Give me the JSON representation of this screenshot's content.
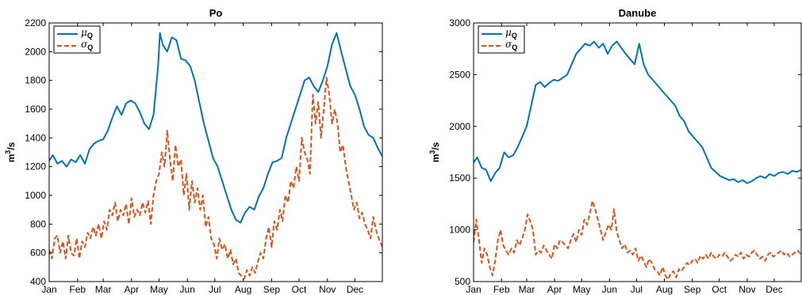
{
  "colors": {
    "mean": "#0072BD",
    "std": "#D95319",
    "axis": "#000000",
    "background": "#ffffff"
  },
  "chart_data": [
    {
      "type": "line",
      "title": "Po",
      "xlabel": "",
      "ylabel": "m3/s",
      "ylabel_base": "m",
      "ylabel_exp": "3",
      "ylabel_rest": "/s",
      "xlim": [
        1,
        365
      ],
      "ylim": [
        400,
        2200
      ],
      "yticks": [
        400,
        600,
        800,
        1000,
        1200,
        1400,
        1600,
        1800,
        2000,
        2200
      ],
      "month_labels": [
        "Jan",
        "Feb",
        "Mar",
        "Apr",
        "May",
        "Jun",
        "Jul",
        "Aug",
        "Sep",
        "Oct",
        "Nov",
        "Dec"
      ],
      "month_days": [
        1,
        32,
        60,
        91,
        121,
        152,
        182,
        213,
        244,
        274,
        305,
        335
      ],
      "legend": "top-left",
      "grid": false,
      "series": [
        {
          "name": "μQ",
          "name_symbol": "μ",
          "name_sub": "Q",
          "style": "solid",
          "color": "#0072BD",
          "x": [
            1,
            5,
            10,
            15,
            20,
            25,
            30,
            35,
            40,
            45,
            50,
            55,
            60,
            65,
            70,
            75,
            80,
            85,
            90,
            95,
            100,
            105,
            110,
            115,
            120,
            122,
            125,
            130,
            135,
            140,
            145,
            150,
            155,
            160,
            165,
            170,
            175,
            180,
            185,
            190,
            195,
            200,
            205,
            210,
            215,
            220,
            225,
            230,
            235,
            240,
            245,
            250,
            255,
            260,
            265,
            270,
            275,
            280,
            285,
            290,
            295,
            300,
            305,
            310,
            315,
            320,
            325,
            330,
            335,
            340,
            345,
            350,
            355,
            360,
            365
          ],
          "y": [
            1240,
            1280,
            1220,
            1240,
            1200,
            1250,
            1230,
            1280,
            1220,
            1320,
            1360,
            1380,
            1390,
            1450,
            1540,
            1620,
            1560,
            1640,
            1660,
            1640,
            1580,
            1500,
            1460,
            1560,
            1900,
            2130,
            2050,
            2000,
            2100,
            2080,
            1950,
            1940,
            1900,
            1800,
            1650,
            1500,
            1380,
            1260,
            1200,
            1100,
            1000,
            900,
            830,
            810,
            880,
            920,
            900,
            990,
            1050,
            1150,
            1230,
            1240,
            1260,
            1400,
            1500,
            1600,
            1700,
            1800,
            1820,
            1760,
            1720,
            1800,
            1900,
            2050,
            2130,
            2000,
            1880,
            1760,
            1700,
            1600,
            1480,
            1420,
            1400,
            1330,
            1270
          ]
        },
        {
          "name": "σQ",
          "name_symbol": "σ",
          "name_sub": "Q",
          "style": "dashed",
          "color": "#D95319",
          "x": [
            1,
            4,
            7,
            10,
            13,
            16,
            19,
            22,
            25,
            28,
            31,
            34,
            37,
            40,
            43,
            46,
            49,
            52,
            55,
            58,
            61,
            64,
            67,
            70,
            73,
            76,
            79,
            82,
            85,
            88,
            91,
            94,
            97,
            100,
            103,
            106,
            109,
            112,
            115,
            118,
            121,
            124,
            127,
            130,
            133,
            136,
            139,
            142,
            145,
            148,
            151,
            154,
            157,
            160,
            163,
            166,
            169,
            172,
            175,
            178,
            181,
            184,
            187,
            190,
            193,
            196,
            199,
            202,
            205,
            208,
            211,
            214,
            217,
            220,
            223,
            226,
            229,
            232,
            235,
            238,
            241,
            244,
            247,
            250,
            253,
            256,
            259,
            262,
            265,
            268,
            271,
            274,
            277,
            280,
            283,
            286,
            289,
            292,
            295,
            298,
            301,
            304,
            307,
            310,
            313,
            316,
            319,
            322,
            325,
            328,
            331,
            334,
            337,
            340,
            343,
            346,
            349,
            352,
            355,
            358,
            361,
            365
          ],
          "y": [
            620,
            560,
            700,
            720,
            600,
            680,
            560,
            720,
            600,
            580,
            700,
            560,
            680,
            640,
            740,
            700,
            780,
            720,
            800,
            700,
            820,
            760,
            900,
            860,
            950,
            820,
            900,
            860,
            940,
            800,
            980,
            850,
            900,
            860,
            950,
            880,
            960,
            800,
            1000,
            1100,
            1150,
            1300,
            1200,
            1450,
            1250,
            1100,
            1350,
            1200,
            1250,
            1000,
            1150,
            900,
            1100,
            950,
            1050,
            900,
            1000,
            780,
            850,
            700,
            660,
            560,
            700,
            620,
            660,
            560,
            620,
            520,
            560,
            460,
            440,
            420,
            480,
            440,
            500,
            460,
            540,
            600,
            560,
            700,
            780,
            640,
            820,
            760,
            900,
            820,
            1000,
            950,
            1100,
            1050,
            1200,
            1100,
            1400,
            1300,
            1250,
            1150,
            1700,
            1500,
            1650,
            1400,
            1600,
            1820,
            1700,
            1500,
            1600,
            1500,
            1300,
            1350,
            1200,
            1100,
            1000,
            900,
            950,
            840,
            880,
            800,
            760,
            700,
            850,
            760,
            700,
            640
          ]
        }
      ]
    },
    {
      "type": "line",
      "title": "Danube",
      "xlabel": "",
      "ylabel": "m3/s",
      "ylabel_base": "m",
      "ylabel_exp": "3",
      "ylabel_rest": "/s",
      "xlim": [
        1,
        365
      ],
      "ylim": [
        500,
        3000
      ],
      "yticks": [
        500,
        1000,
        1500,
        2000,
        2500,
        3000
      ],
      "month_labels": [
        "Jan",
        "Feb",
        "Mar",
        "Apr",
        "May",
        "Jun",
        "Jul",
        "Aug",
        "Sep",
        "Oct",
        "Nov",
        "Dec"
      ],
      "month_days": [
        1,
        32,
        60,
        91,
        121,
        152,
        182,
        213,
        244,
        274,
        305,
        335
      ],
      "legend": "top-left",
      "grid": false,
      "series": [
        {
          "name": "μQ",
          "name_symbol": "μ",
          "name_sub": "Q",
          "style": "solid",
          "color": "#0072BD",
          "x": [
            1,
            5,
            10,
            15,
            20,
            25,
            30,
            35,
            40,
            45,
            50,
            55,
            60,
            65,
            70,
            75,
            80,
            85,
            90,
            95,
            100,
            105,
            110,
            115,
            120,
            125,
            130,
            135,
            140,
            145,
            150,
            155,
            160,
            165,
            170,
            175,
            180,
            185,
            190,
            195,
            200,
            205,
            210,
            215,
            220,
            225,
            230,
            235,
            240,
            245,
            250,
            255,
            260,
            265,
            270,
            275,
            280,
            285,
            290,
            295,
            300,
            305,
            310,
            315,
            320,
            325,
            330,
            335,
            340,
            345,
            350,
            355,
            360,
            365
          ],
          "y": [
            1650,
            1700,
            1600,
            1580,
            1470,
            1550,
            1600,
            1750,
            1700,
            1720,
            1800,
            1900,
            2000,
            2200,
            2400,
            2430,
            2380,
            2420,
            2450,
            2440,
            2470,
            2500,
            2600,
            2700,
            2750,
            2800,
            2780,
            2820,
            2760,
            2800,
            2700,
            2780,
            2820,
            2760,
            2700,
            2650,
            2600,
            2800,
            2600,
            2500,
            2450,
            2400,
            2350,
            2300,
            2250,
            2200,
            2100,
            2050,
            1950,
            1900,
            1850,
            1800,
            1700,
            1600,
            1560,
            1520,
            1500,
            1480,
            1490,
            1460,
            1480,
            1450,
            1470,
            1500,
            1520,
            1500,
            1540,
            1520,
            1550,
            1560,
            1540,
            1570,
            1560,
            1580
          ]
        },
        {
          "name": "σQ",
          "name_symbol": "σ",
          "name_sub": "Q",
          "style": "dashed",
          "color": "#D95319",
          "x": [
            1,
            4,
            7,
            10,
            13,
            16,
            19,
            22,
            25,
            28,
            31,
            34,
            37,
            40,
            43,
            46,
            49,
            52,
            55,
            58,
            61,
            64,
            67,
            70,
            73,
            76,
            79,
            82,
            85,
            88,
            91,
            94,
            97,
            100,
            103,
            106,
            109,
            112,
            115,
            118,
            121,
            124,
            127,
            130,
            133,
            136,
            139,
            142,
            145,
            148,
            151,
            154,
            157,
            160,
            163,
            166,
            169,
            172,
            175,
            178,
            181,
            184,
            187,
            190,
            193,
            196,
            199,
            202,
            205,
            208,
            211,
            214,
            217,
            220,
            223,
            226,
            229,
            232,
            235,
            238,
            241,
            244,
            247,
            250,
            253,
            256,
            259,
            262,
            265,
            268,
            271,
            274,
            277,
            280,
            283,
            286,
            289,
            292,
            295,
            298,
            301,
            304,
            307,
            310,
            313,
            316,
            319,
            322,
            325,
            328,
            331,
            334,
            337,
            340,
            343,
            346,
            349,
            352,
            355,
            358,
            361,
            365
          ],
          "y": [
            880,
            1100,
            900,
            680,
            820,
            760,
            640,
            560,
            700,
            900,
            1000,
            850,
            800,
            760,
            820,
            780,
            900,
            850,
            920,
            1000,
            1150,
            1080,
            1000,
            760,
            800,
            780,
            850,
            800,
            760,
            720,
            860,
            820,
            900,
            880,
            850,
            820,
            900,
            960,
            880,
            1000,
            950,
            1100,
            1050,
            1150,
            1280,
            1200,
            1100,
            1000,
            900,
            980,
            1050,
            1000,
            1200,
            980,
            900,
            820,
            860,
            780,
            800,
            760,
            820,
            700,
            750,
            700,
            640,
            720,
            680,
            620,
            600,
            560,
            640,
            560,
            520,
            580,
            600,
            540,
            620,
            600,
            640,
            680,
            660,
            700,
            720,
            680,
            750,
            720,
            760,
            720,
            780,
            740,
            720,
            760,
            740,
            780,
            740,
            700,
            720,
            760,
            740,
            780,
            720,
            760,
            740,
            780,
            800,
            760,
            720,
            740,
            700,
            760,
            780,
            740,
            760,
            780,
            800,
            760,
            780,
            740,
            760,
            780,
            800,
            760
          ]
        }
      ]
    }
  ]
}
